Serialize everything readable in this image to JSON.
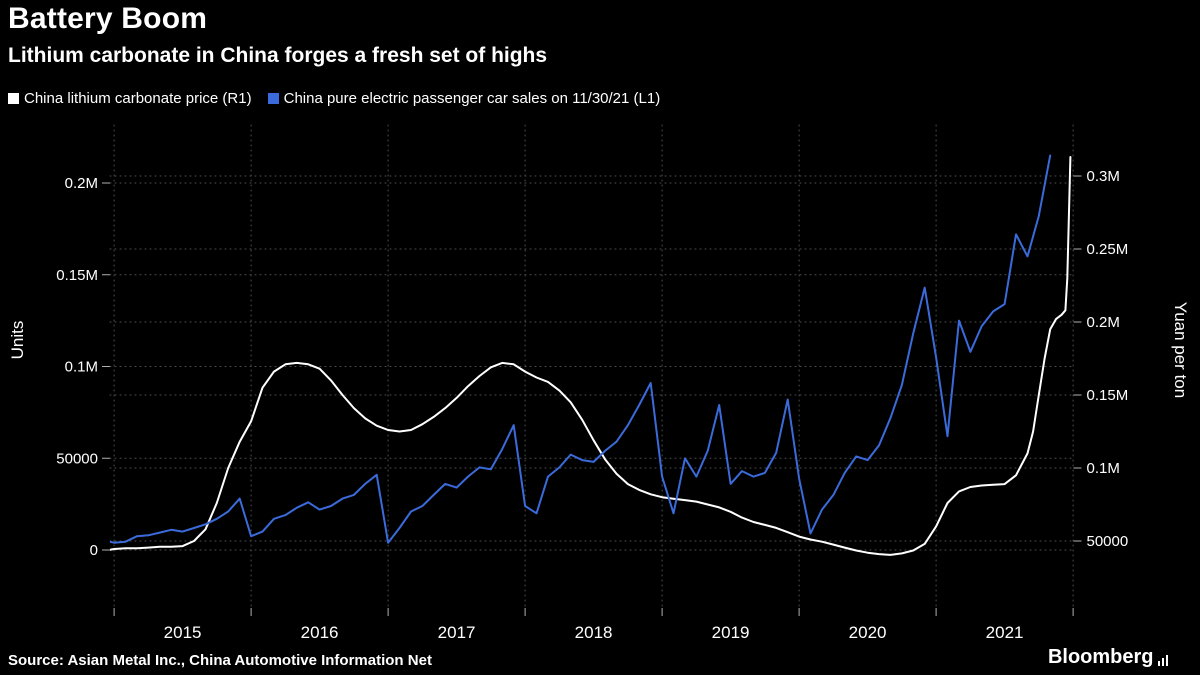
{
  "header": {
    "title": "Battery Boom",
    "subtitle": "Lithium carbonate in China forges a fresh set of highs"
  },
  "legend": [
    {
      "label": "China lithium carbonate price (R1)",
      "color": "#ffffff"
    },
    {
      "label": "China pure electric passenger car sales on 11/30/21 (L1)",
      "color": "#3b6bdb"
    }
  ],
  "footer": {
    "source": "Source: Asian Metal Inc., China Automotive Information Net",
    "brand": "Bloomberg"
  },
  "chart_data": {
    "type": "line",
    "title": "Battery Boom",
    "subtitle": "Lithium carbonate in China forges a fresh set of highs",
    "grid": "dotted horizontal lines at both axes' ticks, dotted vertical lines at year starts",
    "legend_position": "top-left",
    "x_axis": {
      "grid_years": [
        2015,
        2016,
        2017,
        2018,
        2019,
        2020,
        2021,
        2022
      ],
      "tick_labels": [
        "2015",
        "2016",
        "2017",
        "2018",
        "2019",
        "2020",
        "2021"
      ],
      "range": [
        2014.97,
        2022.0
      ]
    },
    "left_axis": {
      "label": "Units",
      "range": [
        0,
        230000
      ],
      "ticks": [
        {
          "value": 0,
          "label": "0"
        },
        {
          "value": 50000,
          "label": "50000"
        },
        {
          "value": 100000,
          "label": "0.1M"
        },
        {
          "value": 150000,
          "label": "0.15M"
        },
        {
          "value": 200000,
          "label": "0.2M"
        }
      ]
    },
    "right_axis": {
      "label": "Yuan per ton",
      "range": [
        35000,
        330000
      ],
      "ticks": [
        {
          "value": 50000,
          "label": "50000"
        },
        {
          "value": 100000,
          "label": "0.1M"
        },
        {
          "value": 150000,
          "label": "0.15M"
        },
        {
          "value": 200000,
          "label": "0.2M"
        },
        {
          "value": 250000,
          "label": "0.25M"
        },
        {
          "value": 300000,
          "label": "0.3M"
        }
      ]
    },
    "series": [
      {
        "name": "China lithium carbonate price (R1)",
        "axis": "right",
        "color": "#ffffff",
        "unit": "yuan per ton",
        "points": [
          [
            2014.97,
            44000
          ],
          [
            2015.0,
            44500
          ],
          [
            2015.083,
            45000
          ],
          [
            2015.167,
            45000
          ],
          [
            2015.25,
            45500
          ],
          [
            2015.333,
            46000
          ],
          [
            2015.417,
            46000
          ],
          [
            2015.5,
            46500
          ],
          [
            2015.583,
            50000
          ],
          [
            2015.667,
            58000
          ],
          [
            2015.75,
            76000
          ],
          [
            2015.833,
            100000
          ],
          [
            2015.917,
            118000
          ],
          [
            2016.0,
            132000
          ],
          [
            2016.083,
            155000
          ],
          [
            2016.167,
            166000
          ],
          [
            2016.25,
            171000
          ],
          [
            2016.333,
            172000
          ],
          [
            2016.417,
            171000
          ],
          [
            2016.5,
            168000
          ],
          [
            2016.583,
            160000
          ],
          [
            2016.667,
            150000
          ],
          [
            2016.75,
            141000
          ],
          [
            2016.833,
            134000
          ],
          [
            2016.917,
            129000
          ],
          [
            2017.0,
            126000
          ],
          [
            2017.083,
            125000
          ],
          [
            2017.167,
            126000
          ],
          [
            2017.25,
            130000
          ],
          [
            2017.333,
            135000
          ],
          [
            2017.417,
            141000
          ],
          [
            2017.5,
            148000
          ],
          [
            2017.583,
            156000
          ],
          [
            2017.667,
            163000
          ],
          [
            2017.75,
            169000
          ],
          [
            2017.833,
            172000
          ],
          [
            2017.917,
            171000
          ],
          [
            2018.0,
            166000
          ],
          [
            2018.083,
            162000
          ],
          [
            2018.167,
            159000
          ],
          [
            2018.25,
            153000
          ],
          [
            2018.333,
            145000
          ],
          [
            2018.417,
            133000
          ],
          [
            2018.5,
            119000
          ],
          [
            2018.583,
            106000
          ],
          [
            2018.667,
            96000
          ],
          [
            2018.75,
            89000
          ],
          [
            2018.833,
            85000
          ],
          [
            2018.917,
            82000
          ],
          [
            2019.0,
            80000
          ],
          [
            2019.083,
            79000
          ],
          [
            2019.167,
            78000
          ],
          [
            2019.25,
            77000
          ],
          [
            2019.333,
            75000
          ],
          [
            2019.417,
            73000
          ],
          [
            2019.5,
            70000
          ],
          [
            2019.583,
            66000
          ],
          [
            2019.667,
            63000
          ],
          [
            2019.75,
            61000
          ],
          [
            2019.833,
            59000
          ],
          [
            2019.917,
            56000
          ],
          [
            2020.0,
            53000
          ],
          [
            2020.083,
            51000
          ],
          [
            2020.167,
            49500
          ],
          [
            2020.25,
            47500
          ],
          [
            2020.333,
            45500
          ],
          [
            2020.417,
            43500
          ],
          [
            2020.5,
            42000
          ],
          [
            2020.583,
            41000
          ],
          [
            2020.667,
            40500
          ],
          [
            2020.75,
            41500
          ],
          [
            2020.833,
            43500
          ],
          [
            2020.917,
            48000
          ],
          [
            2021.0,
            60000
          ],
          [
            2021.083,
            76000
          ],
          [
            2021.167,
            84000
          ],
          [
            2021.25,
            87000
          ],
          [
            2021.333,
            88000
          ],
          [
            2021.417,
            88500
          ],
          [
            2021.5,
            89000
          ],
          [
            2021.583,
            95000
          ],
          [
            2021.667,
            110000
          ],
          [
            2021.708,
            125000
          ],
          [
            2021.75,
            150000
          ],
          [
            2021.792,
            175000
          ],
          [
            2021.833,
            195000
          ],
          [
            2021.875,
            202000
          ],
          [
            2021.917,
            205000
          ],
          [
            2021.944,
            208000
          ],
          [
            2021.958,
            230000
          ],
          [
            2021.98,
            313000
          ]
        ]
      },
      {
        "name": "China pure electric passenger car sales on 11/30/21 (L1)",
        "axis": "left",
        "color": "#3b6bdb",
        "unit": "units",
        "points": [
          [
            2014.97,
            4500
          ],
          [
            2015.0,
            4000
          ],
          [
            2015.083,
            4500
          ],
          [
            2015.167,
            7500
          ],
          [
            2015.25,
            8000
          ],
          [
            2015.333,
            9500
          ],
          [
            2015.417,
            11000
          ],
          [
            2015.5,
            10000
          ],
          [
            2015.583,
            12000
          ],
          [
            2015.667,
            14000
          ],
          [
            2015.75,
            17000
          ],
          [
            2015.833,
            21000
          ],
          [
            2015.917,
            28000
          ],
          [
            2016.0,
            7500
          ],
          [
            2016.083,
            10000
          ],
          [
            2016.167,
            17000
          ],
          [
            2016.25,
            19000
          ],
          [
            2016.333,
            23000
          ],
          [
            2016.417,
            26000
          ],
          [
            2016.5,
            22000
          ],
          [
            2016.583,
            24000
          ],
          [
            2016.667,
            28000
          ],
          [
            2016.75,
            30000
          ],
          [
            2016.833,
            36000
          ],
          [
            2016.917,
            41000
          ],
          [
            2017.0,
            4000
          ],
          [
            2017.083,
            12000
          ],
          [
            2017.167,
            21000
          ],
          [
            2017.25,
            24000
          ],
          [
            2017.333,
            30000
          ],
          [
            2017.417,
            36000
          ],
          [
            2017.5,
            34000
          ],
          [
            2017.583,
            40000
          ],
          [
            2017.667,
            45000
          ],
          [
            2017.75,
            44000
          ],
          [
            2017.833,
            55000
          ],
          [
            2017.917,
            68000
          ],
          [
            2018.0,
            24000
          ],
          [
            2018.083,
            20000
          ],
          [
            2018.167,
            40000
          ],
          [
            2018.25,
            45000
          ],
          [
            2018.333,
            52000
          ],
          [
            2018.417,
            49000
          ],
          [
            2018.5,
            48000
          ],
          [
            2018.583,
            54000
          ],
          [
            2018.667,
            59000
          ],
          [
            2018.75,
            68000
          ],
          [
            2018.833,
            79000
          ],
          [
            2018.917,
            91000
          ],
          [
            2019.0,
            40000
          ],
          [
            2019.083,
            20000
          ],
          [
            2019.167,
            50000
          ],
          [
            2019.25,
            40000
          ],
          [
            2019.333,
            54000
          ],
          [
            2019.417,
            79000
          ],
          [
            2019.5,
            36000
          ],
          [
            2019.583,
            43000
          ],
          [
            2019.667,
            40000
          ],
          [
            2019.75,
            42000
          ],
          [
            2019.833,
            53000
          ],
          [
            2019.917,
            82000
          ],
          [
            2020.0,
            39000
          ],
          [
            2020.083,
            9000
          ],
          [
            2020.167,
            22000
          ],
          [
            2020.25,
            30000
          ],
          [
            2020.333,
            42000
          ],
          [
            2020.417,
            51000
          ],
          [
            2020.5,
            49000
          ],
          [
            2020.583,
            57000
          ],
          [
            2020.667,
            72000
          ],
          [
            2020.75,
            90000
          ],
          [
            2020.833,
            118000
          ],
          [
            2020.917,
            143000
          ],
          [
            2021.0,
            105000
          ],
          [
            2021.083,
            62000
          ],
          [
            2021.167,
            125000
          ],
          [
            2021.25,
            108000
          ],
          [
            2021.333,
            122000
          ],
          [
            2021.417,
            130000
          ],
          [
            2021.5,
            134000
          ],
          [
            2021.583,
            172000
          ],
          [
            2021.667,
            160000
          ],
          [
            2021.75,
            182000
          ],
          [
            2021.833,
            215000
          ]
        ]
      }
    ]
  }
}
